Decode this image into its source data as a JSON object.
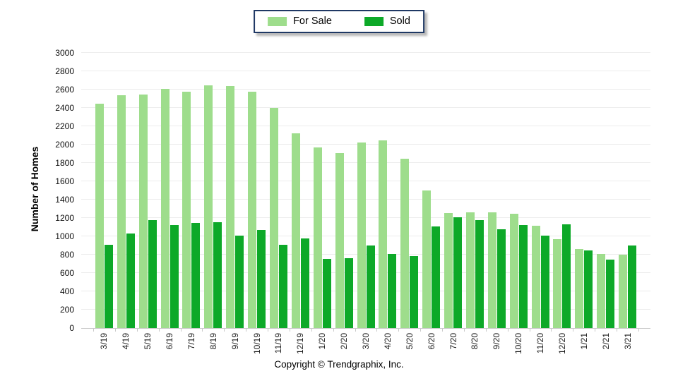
{
  "legend": {
    "items": [
      {
        "label": "For Sale",
        "color": "#9edd8c"
      },
      {
        "label": "Sold",
        "color": "#0da928"
      }
    ]
  },
  "y_axis": {
    "title": "Number of Homes"
  },
  "footer": {
    "copyright": "Copyright © Trendgraphix, Inc."
  },
  "colors": {
    "for_sale": "#9edd8c",
    "sold": "#0da928",
    "gridline": "#ececec",
    "axis": "#c9c9c9",
    "legend_border": "#1f3864"
  },
  "chart_data": {
    "type": "bar",
    "title": "",
    "categories": [
      "3/19",
      "4/19",
      "5/19",
      "6/19",
      "7/19",
      "8/19",
      "9/19",
      "10/19",
      "11/19",
      "12/19",
      "1/20",
      "2/20",
      "3/20",
      "4/20",
      "5/20",
      "6/20",
      "7/20",
      "8/20",
      "9/20",
      "10/20",
      "11/20",
      "12/20",
      "1/21",
      "2/21",
      "3/21"
    ],
    "series": [
      {
        "name": "For Sale",
        "color": "#9edd8c",
        "values": [
          2450,
          2540,
          2550,
          2610,
          2580,
          2650,
          2640,
          2580,
          2400,
          2120,
          1970,
          1905,
          2020,
          2045,
          1845,
          1500,
          1255,
          1265,
          1260,
          1250,
          1115,
          970,
          860,
          805,
          800
        ]
      },
      {
        "name": "Sold",
        "color": "#0da928",
        "values": [
          905,
          1030,
          1180,
          1125,
          1145,
          1155,
          1005,
          1070,
          905,
          980,
          755,
          760,
          900,
          810,
          785,
          1110,
          1205,
          1175,
          1075,
          1120,
          1010,
          1130,
          845,
          750,
          900
        ]
      }
    ],
    "xlabel": "",
    "ylabel": "Number of Homes",
    "ylim": [
      0,
      3000
    ],
    "ytick_step": 200,
    "grid": true,
    "legend_position": "top-center"
  }
}
